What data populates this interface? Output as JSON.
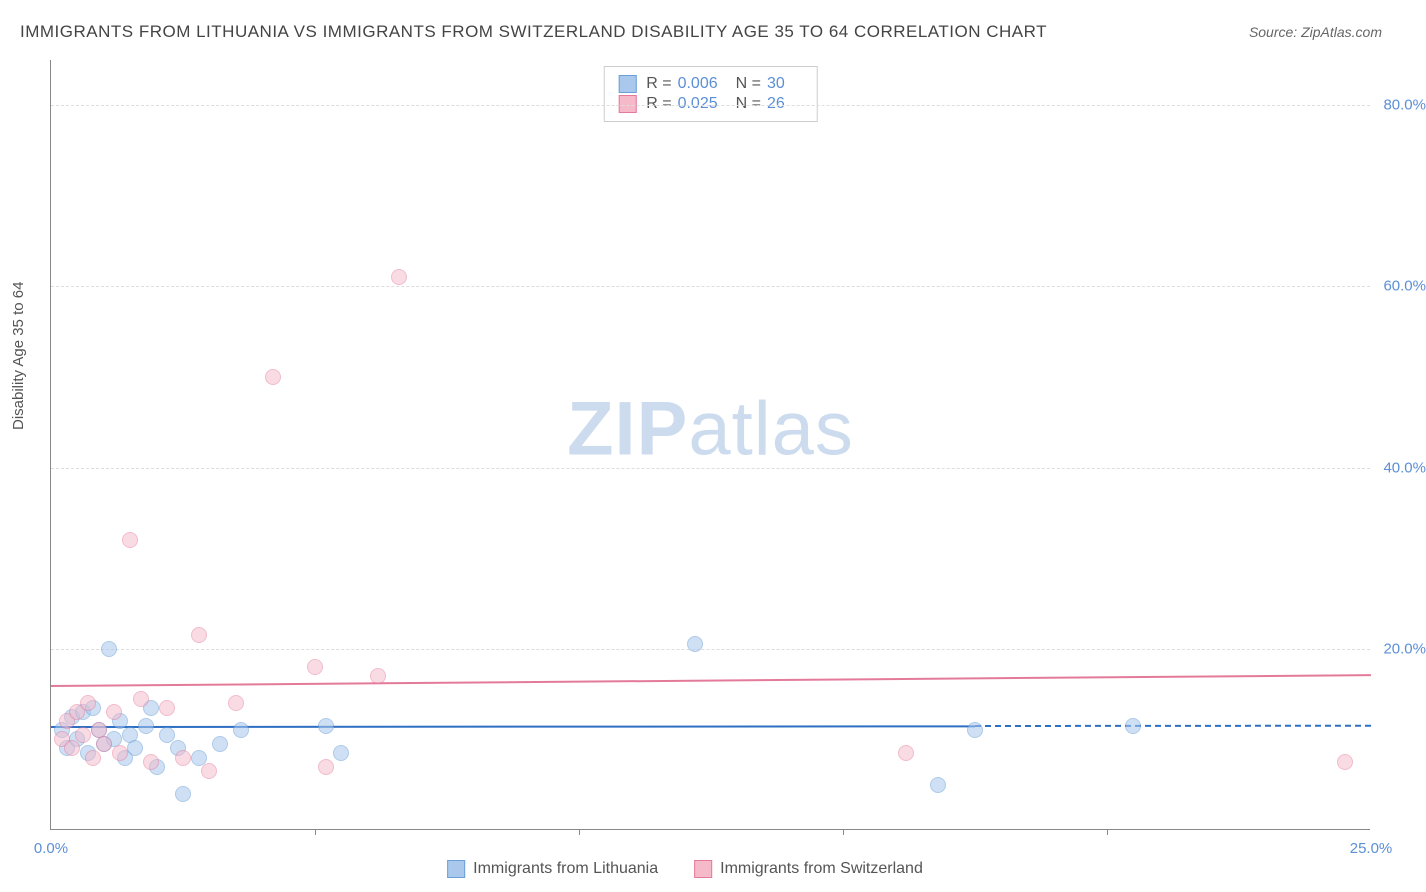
{
  "title": "IMMIGRANTS FROM LITHUANIA VS IMMIGRANTS FROM SWITZERLAND DISABILITY AGE 35 TO 64 CORRELATION CHART",
  "source": "Source: ZipAtlas.com",
  "ylabel": "Disability Age 35 to 64",
  "watermark_bold": "ZIP",
  "watermark_rest": "atlas",
  "chart": {
    "type": "scatter",
    "xlim": [
      0,
      25
    ],
    "ylim": [
      0,
      85
    ],
    "xticks": [
      {
        "pos": 0,
        "label": "0.0%"
      },
      {
        "pos": 25,
        "label": "25.0%"
      }
    ],
    "xtick_marks": [
      5,
      10,
      15,
      20
    ],
    "yticks": [
      {
        "pos": 20,
        "label": "20.0%"
      },
      {
        "pos": 40,
        "label": "40.0%"
      },
      {
        "pos": 60,
        "label": "60.0%"
      },
      {
        "pos": 80,
        "label": "80.0%"
      }
    ],
    "grid_color": "#dddddd",
    "background_color": "#ffffff",
    "tick_color": "#5b8fd6",
    "series": [
      {
        "name": "Immigrants from Lithuania",
        "fill": "#a9c8ec",
        "stroke": "#6a9fd8",
        "fill_opacity": 0.55,
        "radius": 8,
        "points": [
          [
            0.2,
            11
          ],
          [
            0.3,
            9
          ],
          [
            0.4,
            12.5
          ],
          [
            0.5,
            10
          ],
          [
            0.6,
            13
          ],
          [
            0.7,
            8.5
          ],
          [
            0.8,
            13.5
          ],
          [
            0.9,
            11
          ],
          [
            1.0,
            9.5
          ],
          [
            1.1,
            20
          ],
          [
            1.2,
            10
          ],
          [
            1.3,
            12
          ],
          [
            1.4,
            8
          ],
          [
            1.5,
            10.5
          ],
          [
            1.6,
            9
          ],
          [
            1.8,
            11.5
          ],
          [
            1.9,
            13.5
          ],
          [
            2.0,
            7
          ],
          [
            2.2,
            10.5
          ],
          [
            2.4,
            9
          ],
          [
            2.5,
            4
          ],
          [
            2.8,
            8
          ],
          [
            3.2,
            9.5
          ],
          [
            3.6,
            11
          ],
          [
            5.2,
            11.5
          ],
          [
            5.5,
            8.5
          ],
          [
            12.2,
            20.5
          ],
          [
            16.8,
            5
          ],
          [
            17.5,
            11
          ],
          [
            20.5,
            11.5
          ]
        ],
        "trend": {
          "y1": 11.5,
          "y2": 11.6,
          "solid_end_x": 17.5,
          "color": "#2e6fc4"
        }
      },
      {
        "name": "Immigrants from Switzerland",
        "fill": "#f5b9c9",
        "stroke": "#e47a9a",
        "fill_opacity": 0.5,
        "radius": 8,
        "points": [
          [
            0.2,
            10
          ],
          [
            0.3,
            12
          ],
          [
            0.4,
            9
          ],
          [
            0.5,
            13
          ],
          [
            0.6,
            10.5
          ],
          [
            0.7,
            14
          ],
          [
            0.8,
            8
          ],
          [
            0.9,
            11
          ],
          [
            1.0,
            9.5
          ],
          [
            1.2,
            13
          ],
          [
            1.3,
            8.5
          ],
          [
            1.5,
            32
          ],
          [
            1.7,
            14.5
          ],
          [
            1.9,
            7.5
          ],
          [
            2.2,
            13.5
          ],
          [
            2.5,
            8
          ],
          [
            2.8,
            21.5
          ],
          [
            3.0,
            6.5
          ],
          [
            3.5,
            14
          ],
          [
            4.2,
            50
          ],
          [
            5.0,
            18
          ],
          [
            5.2,
            7
          ],
          [
            6.2,
            17
          ],
          [
            6.6,
            61
          ],
          [
            16.2,
            8.5
          ],
          [
            24.5,
            7.5
          ]
        ],
        "trend": {
          "y1": 16.0,
          "y2": 17.2,
          "solid_end_x": 25,
          "color": "#e47a9a"
        }
      }
    ]
  },
  "legend_top": {
    "rows": [
      {
        "swatch_fill": "#a9c8ec",
        "swatch_stroke": "#6a9fd8",
        "r": "0.006",
        "n": "30"
      },
      {
        "swatch_fill": "#f5b9c9",
        "swatch_stroke": "#e47a9a",
        "r": "0.025",
        "n": "26"
      }
    ],
    "r_label": "R =",
    "n_label": "N ="
  },
  "legend_bottom": [
    {
      "swatch_fill": "#a9c8ec",
      "swatch_stroke": "#6a9fd8",
      "label": "Immigrants from Lithuania"
    },
    {
      "swatch_fill": "#f5b9c9",
      "swatch_stroke": "#e47a9a",
      "label": "Immigrants from Switzerland"
    }
  ]
}
